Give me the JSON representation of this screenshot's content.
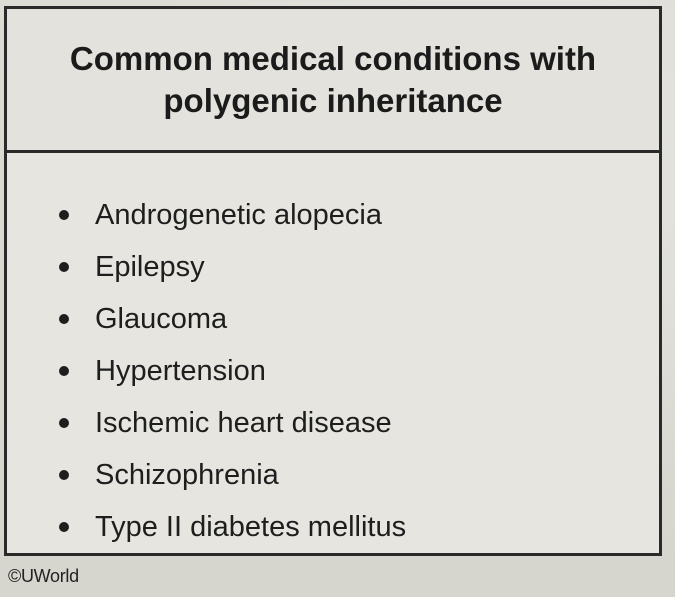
{
  "table": {
    "title_line1": "Common medical conditions with",
    "title_line2": "polygenic inheritance",
    "items": [
      "Androgenetic alopecia",
      "Epilepsy",
      "Glaucoma",
      "Hypertension",
      "Ischemic heart disease",
      "Schizophrenia",
      "Type II diabetes mellitus"
    ]
  },
  "footer": {
    "copyright": "©UWorld"
  }
}
